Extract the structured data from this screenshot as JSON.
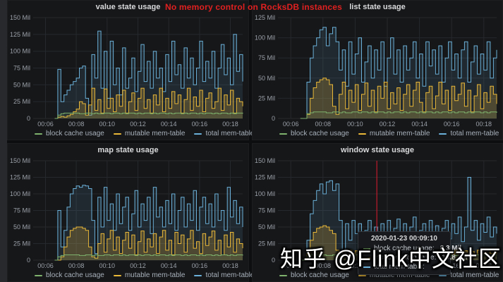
{
  "header": {
    "warning": "No memory control on RocksDB instances"
  },
  "watermark": "知乎 @Flink中文社区",
  "colors": {
    "block_cache": "#7eb26d",
    "mutable_memtable": "#eab839",
    "total_memtable": "#6ab0d8",
    "annotation_red": "#bf1b2c",
    "panel_bg": "#161719",
    "grid": "#25282c",
    "axis_text": "#9aa0a8",
    "warning_red": "#e02020"
  },
  "tooltip": {
    "timestamp": "2020-01-23 00:09:10",
    "rows": [
      {
        "label": "block cache usage:",
        "value": "8.3 Mil",
        "color": "#7eb26d"
      },
      {
        "label": "mutable mem-table:",
        "value": "13.8 Mil",
        "color": "#eab839"
      },
      {
        "label": "total mem-table:",
        "value": "",
        "color": "#6ab0d8"
      }
    ]
  },
  "chart_data": [
    {
      "type": "area",
      "title": "value state usage",
      "y_unit": "Mil",
      "y_max": 150,
      "y_step": 25,
      "y_tick_labels": [
        "0",
        "25 Mil",
        "50 Mil",
        "75 Mil",
        "100 Mil",
        "125 Mil",
        "150 Mil"
      ],
      "x_domain": [
        5.2,
        18.8
      ],
      "x_ticks": [
        {
          "t": 6,
          "label": "00:06"
        },
        {
          "t": 8,
          "label": "00:08"
        },
        {
          "t": 10,
          "label": "00:10"
        },
        {
          "t": 12,
          "label": "00:12"
        },
        {
          "t": 14,
          "label": "00:14"
        },
        {
          "t": 16,
          "label": "00:16"
        },
        {
          "t": 18,
          "label": "00:18"
        }
      ],
      "x_start": 6.6,
      "dx": 0.2,
      "annotation_x": null,
      "series": [
        {
          "name": "block cache usage",
          "color": "#7eb26d",
          "fill_opacity": 0.1,
          "values": [
            0,
            5,
            7,
            8,
            8,
            8,
            8,
            8,
            7,
            7,
            8,
            8,
            7,
            8,
            7,
            7,
            8,
            8,
            7,
            8,
            8,
            7,
            8,
            7,
            8,
            8,
            7,
            8,
            7,
            8,
            8,
            7,
            8,
            7,
            8,
            8,
            7,
            8,
            7,
            8,
            8,
            7,
            8,
            7,
            8,
            8,
            7,
            8,
            7,
            8,
            8,
            7,
            8,
            7,
            8,
            8,
            7,
            8,
            7,
            8,
            8,
            7
          ]
        },
        {
          "name": "mutable mem-table",
          "color": "#eab839",
          "fill_opacity": 0.22,
          "values": [
            0,
            2,
            3,
            2,
            4,
            6,
            10,
            14,
            25,
            22,
            5,
            20,
            45,
            12,
            28,
            8,
            44,
            15,
            30,
            10,
            35,
            18,
            42,
            8,
            25,
            38,
            12,
            30,
            45,
            15,
            28,
            8,
            35,
            20,
            45,
            10,
            30,
            15,
            40,
            22,
            35,
            8,
            28,
            45,
            12,
            32,
            18,
            42,
            10,
            30,
            38,
            15,
            25,
            45,
            12,
            35,
            20,
            42,
            8,
            30,
            25,
            18
          ]
        },
        {
          "name": "total mem-table",
          "color": "#6ab0d8",
          "fill_opacity": 0.12,
          "values": [
            0,
            73,
            25,
            35,
            42,
            50,
            55,
            60,
            75,
            78,
            30,
            5,
            95,
            60,
            130,
            45,
            100,
            30,
            115,
            50,
            75,
            35,
            105,
            45,
            60,
            90,
            40,
            70,
            110,
            55,
            85,
            45,
            100,
            60,
            75,
            40,
            95,
            55,
            115,
            65,
            80,
            45,
            105,
            60,
            90,
            50,
            75,
            115,
            55,
            85,
            60,
            100,
            45,
            75,
            110,
            65,
            90,
            50,
            125,
            70,
            95,
            55
          ]
        }
      ]
    },
    {
      "type": "area",
      "title": "list state usage",
      "y_unit": "Mil",
      "y_max": 125,
      "y_step": 25,
      "y_tick_labels": [
        "0",
        "25 Mil",
        "50 Mil",
        "75 Mil",
        "100 Mil",
        "125 Mil"
      ],
      "x_domain": [
        5.2,
        18.8
      ],
      "x_ticks": [
        {
          "t": 6,
          "label": "00:06"
        },
        {
          "t": 8,
          "label": "00:08"
        },
        {
          "t": 10,
          "label": "00:10"
        },
        {
          "t": 12,
          "label": "00:12"
        },
        {
          "t": 14,
          "label": "00:14"
        },
        {
          "t": 16,
          "label": "00:16"
        },
        {
          "t": 18,
          "label": "00:18"
        }
      ],
      "x_start": 6.6,
      "dx": 0.2,
      "annotation_x": null,
      "series": [
        {
          "name": "block cache usage",
          "color": "#7eb26d",
          "fill_opacity": 0.1,
          "values": [
            0,
            0,
            6,
            7,
            8,
            8,
            8,
            8,
            7,
            7,
            8,
            8,
            7,
            8,
            7,
            7,
            8,
            8,
            7,
            8,
            8,
            7,
            8,
            7,
            8,
            8,
            7,
            8,
            7,
            8,
            8,
            7,
            8,
            7,
            8,
            8,
            7,
            8,
            7,
            8,
            8,
            7,
            8,
            7,
            8,
            8,
            7,
            8,
            7,
            8,
            8,
            7,
            8,
            7,
            8,
            8,
            7,
            8,
            7,
            8,
            8,
            7
          ]
        },
        {
          "name": "mutable mem-table",
          "color": "#eab839",
          "fill_opacity": 0.22,
          "values": [
            0,
            0,
            5,
            25,
            38,
            45,
            48,
            50,
            48,
            42,
            15,
            5,
            30,
            45,
            12,
            35,
            20,
            42,
            10,
            30,
            44,
            15,
            35,
            8,
            40,
            25,
            45,
            12,
            32,
            18,
            38,
            10,
            30,
            42,
            15,
            35,
            45,
            20,
            8,
            32,
            40,
            12,
            28,
            45,
            18,
            35,
            10,
            40,
            22,
            30,
            44,
            15,
            35,
            8,
            28,
            42,
            12,
            32,
            20,
            40,
            30,
            18
          ]
        },
        {
          "name": "total mem-table",
          "color": "#6ab0d8",
          "fill_opacity": 0.12,
          "values": [
            0,
            0,
            45,
            75,
            90,
            100,
            110,
            113,
            90,
            105,
            113,
            95,
            60,
            85,
            40,
            95,
            55,
            80,
            100,
            45,
            70,
            90,
            50,
            85,
            60,
            95,
            40,
            75,
            100,
            55,
            85,
            45,
            90,
            60,
            75,
            95,
            50,
            80,
            40,
            95,
            65,
            85,
            55,
            90,
            45,
            75,
            95,
            60,
            80,
            50,
            85,
            95,
            45,
            70,
            90,
            55,
            80,
            60,
            95,
            50,
            75,
            85
          ]
        }
      ]
    },
    {
      "type": "area",
      "title": "map state usage",
      "y_unit": "Mil",
      "y_max": 150,
      "y_step": 25,
      "y_tick_labels": [
        "0",
        "25 Mil",
        "50 Mil",
        "75 Mil",
        "100 Mil",
        "125 Mil",
        "150 Mil"
      ],
      "x_domain": [
        5.2,
        18.8
      ],
      "x_ticks": [
        {
          "t": 6,
          "label": "00:06"
        },
        {
          "t": 8,
          "label": "00:08"
        },
        {
          "t": 10,
          "label": "00:10"
        },
        {
          "t": 12,
          "label": "00:12"
        },
        {
          "t": 14,
          "label": "00:14"
        },
        {
          "t": 16,
          "label": "00:16"
        },
        {
          "t": 18,
          "label": "00:18"
        }
      ],
      "x_start": 6.6,
      "dx": 0.2,
      "annotation_x": null,
      "series": [
        {
          "name": "block cache usage",
          "color": "#7eb26d",
          "fill_opacity": 0.1,
          "values": [
            0,
            5,
            7,
            8,
            8,
            8,
            8,
            8,
            7,
            7,
            8,
            8,
            7,
            8,
            7,
            7,
            8,
            8,
            7,
            8,
            8,
            7,
            8,
            7,
            8,
            8,
            7,
            8,
            7,
            8,
            8,
            7,
            8,
            7,
            8,
            8,
            7,
            8,
            7,
            8,
            8,
            7,
            8,
            7,
            8,
            8,
            7,
            8,
            7,
            8,
            8,
            7,
            8,
            7,
            8,
            8,
            7,
            8,
            7,
            8,
            8,
            7
          ]
        },
        {
          "name": "mutable mem-table",
          "color": "#eab839",
          "fill_opacity": 0.22,
          "values": [
            0,
            0,
            5,
            20,
            35,
            45,
            48,
            50,
            50,
            48,
            45,
            20,
            5,
            3,
            25,
            40,
            12,
            32,
            45,
            15,
            35,
            10,
            30,
            42,
            18,
            38,
            8,
            28,
            44,
            12,
            32,
            20,
            40,
            10,
            35,
            45,
            15,
            30,
            8,
            42,
            25,
            38,
            12,
            32,
            45,
            18,
            28,
            10,
            40,
            22,
            35,
            44,
            15,
            30,
            8,
            38,
            20,
            42,
            12,
            32,
            25,
            18
          ]
        },
        {
          "name": "total mem-table",
          "color": "#6ab0d8",
          "fill_opacity": 0.12,
          "values": [
            0,
            75,
            20,
            45,
            80,
            100,
            108,
            112,
            110,
            113,
            112,
            108,
            60,
            10,
            95,
            50,
            110,
            60,
            85,
            45,
            100,
            55,
            80,
            95,
            45,
            70,
            105,
            50,
            85,
            60,
            95,
            40,
            110,
            65,
            80,
            50,
            90,
            55,
            100,
            45,
            75,
            95,
            50,
            85,
            60,
            105,
            45,
            80,
            95,
            55,
            85,
            50,
            100,
            60,
            75,
            45,
            110,
            65,
            90,
            55,
            80,
            50
          ]
        }
      ]
    },
    {
      "type": "area",
      "title": "window state usage",
      "y_unit": "Mil",
      "y_max": 150,
      "y_step": 25,
      "y_tick_labels": [
        "0",
        "25 Mil",
        "50 Mil",
        "75 Mil",
        "100 Mil",
        "125 Mil",
        "150 Mil"
      ],
      "x_domain": [
        5.2,
        18.8
      ],
      "x_ticks": [
        {
          "t": 6,
          "label": "00:06"
        },
        {
          "t": 8,
          "label": "00:08"
        },
        {
          "t": 10,
          "label": "00:10"
        },
        {
          "t": 12,
          "label": "00:12"
        },
        {
          "t": 14,
          "label": "00:14"
        },
        {
          "t": 16,
          "label": "00:16"
        },
        {
          "t": 18,
          "label": "00:18"
        }
      ],
      "x_start": 6.6,
      "dx": 0.2,
      "annotation_x": 11.35,
      "series": [
        {
          "name": "block cache usage",
          "color": "#7eb26d",
          "fill_opacity": 0.1,
          "values": [
            0,
            0,
            6,
            8,
            8,
            8,
            8,
            8,
            7,
            7,
            8,
            8,
            7,
            8,
            7,
            7,
            8,
            8,
            7,
            8,
            8,
            7,
            8,
            7,
            8,
            8,
            7,
            8,
            7,
            8,
            8,
            7,
            8,
            7,
            8,
            8,
            7,
            8,
            7,
            8,
            8,
            7,
            8,
            7,
            8,
            8,
            7,
            8,
            7,
            8,
            8,
            7,
            8,
            7,
            8,
            8,
            7,
            8,
            7,
            8,
            8,
            7
          ]
        },
        {
          "name": "mutable mem-table",
          "color": "#eab839",
          "fill_opacity": 0.22,
          "values": [
            0,
            0,
            10,
            30,
            42,
            48,
            50,
            52,
            50,
            45,
            40,
            15,
            5,
            12,
            8,
            15,
            10,
            14,
            8,
            12,
            15,
            9,
            13,
            8,
            14,
            10,
            15,
            8,
            12,
            14,
            9,
            13,
            8,
            15,
            10,
            12,
            14,
            8,
            13,
            9,
            15,
            10,
            12,
            8,
            14,
            11,
            13,
            9,
            15,
            8,
            12,
            14,
            10,
            13,
            8,
            15,
            9,
            12,
            14,
            10,
            12,
            9
          ]
        },
        {
          "name": "total mem-table",
          "color": "#6ab0d8",
          "fill_opacity": 0.12,
          "values": [
            0,
            0,
            30,
            70,
            90,
            105,
            115,
            100,
            118,
            120,
            105,
            115,
            60,
            10,
            55,
            30,
            60,
            40,
            55,
            25,
            45,
            60,
            35,
            50,
            28,
            55,
            40,
            60,
            30,
            48,
            62,
            35,
            55,
            25,
            50,
            65,
            30,
            45,
            55,
            28,
            60,
            38,
            52,
            25,
            48,
            60,
            32,
            55,
            40,
            65,
            28,
            50,
            125,
            45,
            60,
            30,
            55,
            42,
            65,
            35,
            50,
            40
          ]
        }
      ]
    }
  ]
}
